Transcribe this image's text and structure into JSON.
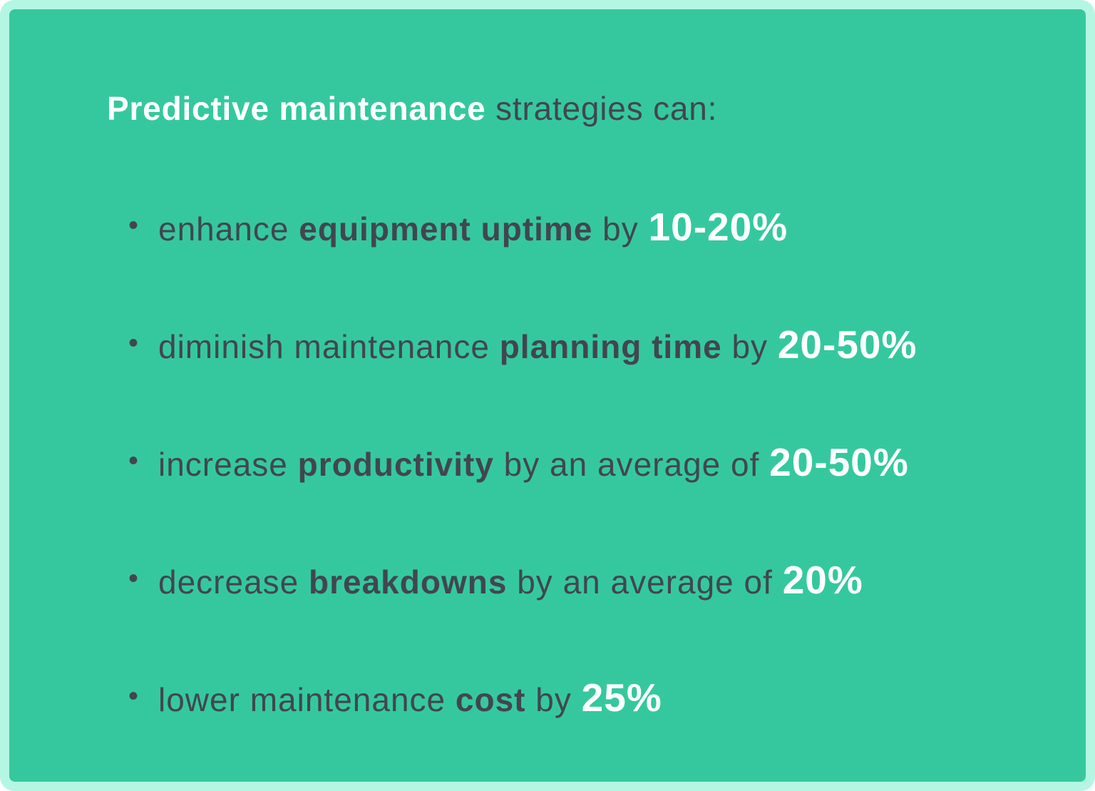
{
  "card": {
    "title": {
      "bold": "Predictive maintenance",
      "rest": " strategies can:"
    },
    "bullet_marker": "•",
    "bullets": [
      {
        "segments": [
          {
            "text": "enhance ",
            "style": "regular"
          },
          {
            "text": "equipment uptime",
            "style": "bold"
          },
          {
            "text": " by ",
            "style": "regular"
          },
          {
            "text": "10-20%",
            "style": "stat"
          }
        ]
      },
      {
        "segments": [
          {
            "text": "diminish maintenance ",
            "style": "regular"
          },
          {
            "text": "planning time",
            "style": "bold"
          },
          {
            "text": " by ",
            "style": "regular"
          },
          {
            "text": "20-50%",
            "style": "stat"
          }
        ]
      },
      {
        "segments": [
          {
            "text": "increase ",
            "style": "regular"
          },
          {
            "text": "productivity",
            "style": "bold"
          },
          {
            "text": " by an average of ",
            "style": "regular"
          },
          {
            "text": "20-50%",
            "style": "stat"
          }
        ]
      },
      {
        "segments": [
          {
            "text": "decrease ",
            "style": "regular"
          },
          {
            "text": "breakdowns",
            "style": "bold"
          },
          {
            "text": " by an average of ",
            "style": "regular"
          },
          {
            "text": "20%",
            "style": "stat"
          }
        ]
      },
      {
        "segments": [
          {
            "text": "lower maintenance ",
            "style": "regular"
          },
          {
            "text": "cost",
            "style": "bold"
          },
          {
            "text": " by ",
            "style": "regular"
          },
          {
            "text": "25%",
            "style": "stat"
          }
        ]
      }
    ],
    "colors": {
      "frame": "#b5f6e3",
      "card": "#35c89e",
      "dark_text": "#42464e",
      "light_text": "#ffffff"
    }
  }
}
